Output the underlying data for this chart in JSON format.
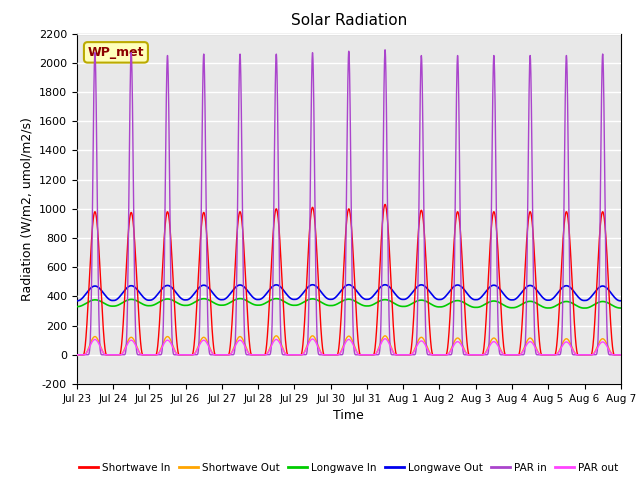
{
  "title": "Solar Radiation",
  "xlabel": "Time",
  "ylabel": "Radiation (W/m2, umol/m2/s)",
  "ylim": [
    -200,
    2200
  ],
  "yticks": [
    -200,
    0,
    200,
    400,
    600,
    800,
    1000,
    1200,
    1400,
    1600,
    1800,
    2000,
    2200
  ],
  "x_tick_labels": [
    "Jul 23",
    "Jul 24",
    "Jul 25",
    "Jul 26",
    "Jul 27",
    "Jul 28",
    "Jul 29",
    "Jul 30",
    "Jul 31",
    "Aug 1",
    "Aug 2",
    "Aug 3",
    "Aug 4",
    "Aug 5",
    "Aug 6",
    "Aug 7"
  ],
  "n_days": 15,
  "colors": {
    "shortwave_in": "#FF0000",
    "shortwave_out": "#FFA500",
    "longwave_in": "#00CC00",
    "longwave_out": "#0000EE",
    "par_in": "#AA44CC",
    "par_out": "#FF44FF"
  },
  "annotation_text": "WP_met",
  "annotation_facecolor": "#FFFFBB",
  "annotation_edgecolor": "#BBAA00",
  "bg_color": "#E8E8E8",
  "grid_color": "white",
  "legend_labels": [
    "Shortwave In",
    "Shortwave Out",
    "Longwave In",
    "Longwave Out",
    "PAR in",
    "PAR out"
  ]
}
